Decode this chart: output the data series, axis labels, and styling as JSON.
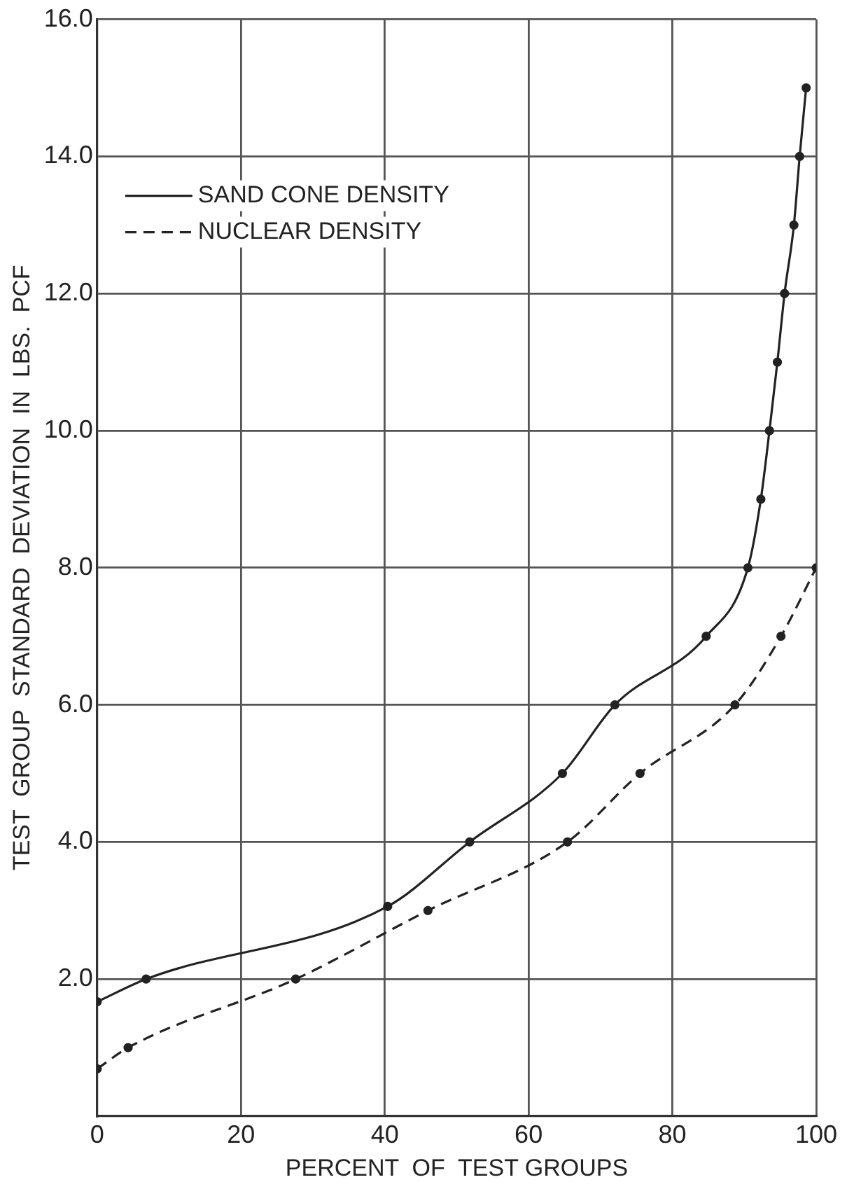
{
  "chart_data": {
    "type": "line",
    "xlabel": "PERCENT  OF  TEST GROUPS",
    "ylabel": "TEST  GROUP  STANDARD  DEVIATION  IN  LBS.  PCF",
    "x": [
      0,
      6.8,
      40.4,
      51.8,
      64.7,
      72,
      84.7,
      90.5,
      92.3,
      93.5,
      94.6,
      95.6,
      96.9,
      97.7,
      98.6
    ],
    "xlim": [
      0,
      100
    ],
    "xticks": [
      0,
      20,
      40,
      60,
      80,
      100
    ],
    "ylim": [
      0,
      16
    ],
    "yticks": [
      {
        "value": 2,
        "label": "2.0"
      },
      {
        "value": 4,
        "label": "4.0"
      },
      {
        "value": 6,
        "label": "6.0"
      },
      {
        "value": 8,
        "label": "8.0"
      },
      {
        "value": 10,
        "label": "10.0"
      },
      {
        "value": 12,
        "label": "12.0"
      },
      {
        "value": 14,
        "label": "14.0"
      },
      {
        "value": 16,
        "label": "16.0"
      }
    ],
    "series": [
      {
        "name": "SAND CONE DENSITY",
        "color": "#222222",
        "line_style": "solid",
        "values": [
          1.67,
          2.0,
          3.06,
          4.0,
          5.0,
          6.0,
          7.0,
          8.0,
          9.0,
          10.0,
          11.0,
          12.0,
          13.0,
          14.0,
          15.0
        ]
      },
      {
        "name": "NUCLEAR DENSITY",
        "color": "#222222",
        "line_style": "dashed",
        "x": [
          0,
          4.3,
          27.6,
          46,
          65.4,
          75.5,
          88.7,
          95.1,
          100
        ],
        "values": [
          0.69,
          1.0,
          2.0,
          3.0,
          4.0,
          5.0,
          6.0,
          7.0,
          8.0
        ]
      }
    ],
    "grid": true,
    "legend": "top left",
    "marker": "circle"
  }
}
